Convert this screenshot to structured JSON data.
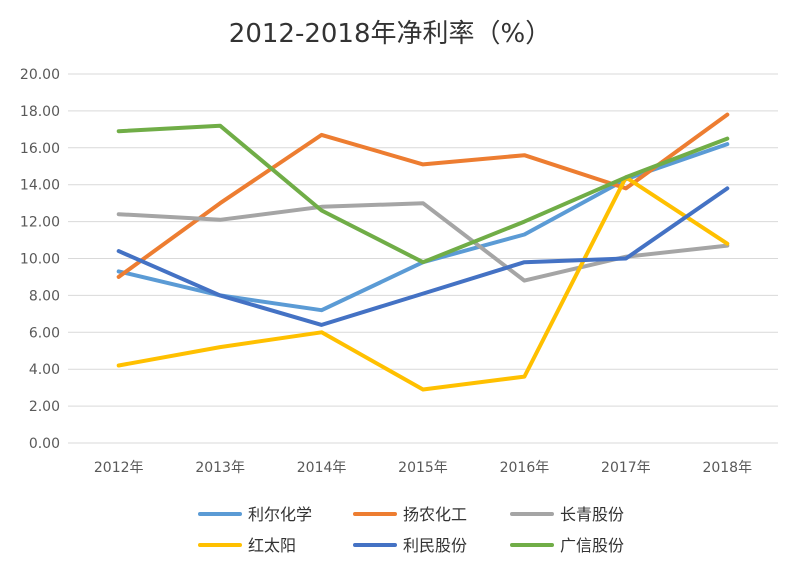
{
  "chart_data": {
    "type": "line",
    "title": "2012-2018年净利率（%）",
    "xlabel": "",
    "ylabel": "",
    "categories": [
      "2012年",
      "2013年",
      "2014年",
      "2015年",
      "2016年",
      "2017年",
      "2018年"
    ],
    "ylim": [
      0,
      20
    ],
    "yticks": [
      "0.00",
      "2.00",
      "4.00",
      "6.00",
      "8.00",
      "10.00",
      "12.00",
      "14.00",
      "16.00",
      "18.00",
      "20.00"
    ],
    "grid": true,
    "legend_position": "bottom",
    "series": [
      {
        "name": "利尔化学",
        "color": "#5B9BD5",
        "values": [
          9.3,
          8.0,
          7.2,
          9.8,
          11.3,
          14.3,
          16.2
        ]
      },
      {
        "name": "扬农化工",
        "color": "#ED7D31",
        "values": [
          9.0,
          13.0,
          16.7,
          15.1,
          15.6,
          13.8,
          17.8
        ]
      },
      {
        "name": "长青股份",
        "color": "#A5A5A5",
        "values": [
          12.4,
          12.1,
          12.8,
          13.0,
          8.8,
          10.1,
          10.7
        ]
      },
      {
        "name": "红太阳",
        "color": "#FFC000",
        "values": [
          4.2,
          5.2,
          6.0,
          2.9,
          3.6,
          14.4,
          10.8
        ]
      },
      {
        "name": "利民股份",
        "color": "#4472C4",
        "values": [
          10.4,
          8.0,
          6.4,
          8.1,
          9.8,
          10.0,
          13.8
        ]
      },
      {
        "name": "广信股份",
        "color": "#70AD47",
        "values": [
          16.9,
          17.2,
          12.6,
          9.8,
          12.0,
          14.4,
          16.5
        ]
      }
    ]
  }
}
